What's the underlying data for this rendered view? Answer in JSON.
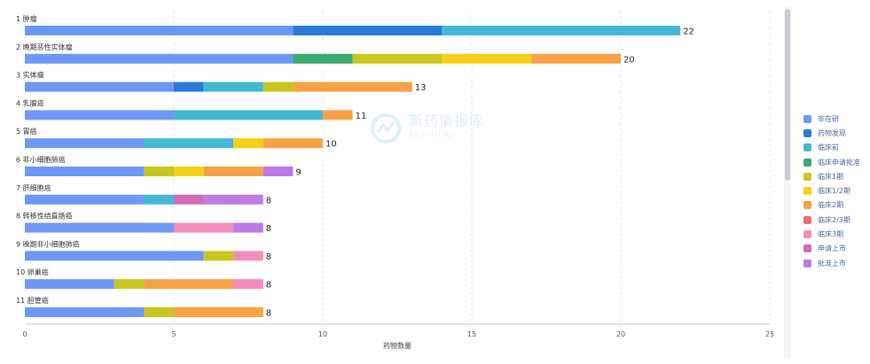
{
  "colors": {
    "非在研": "#6e98f7",
    "药物发现": "#2a7ad9",
    "临床前": "#43b8d2",
    "临床申请批准": "#3aaa72",
    "临床1期": "#c9c61d",
    "临床1/2期": "#f3d217",
    "临床2期": "#f8a245",
    "临床2/3期": "#ef6c78",
    "临床3期": "#f38cbc",
    "申请上市": "#d46bb7",
    "批准上市": "#be7be7"
  },
  "watermark": {
    "title": "新药情报库",
    "subtitle": "by patsnap"
  },
  "chart_data": {
    "type": "bar",
    "orientation": "horizontal",
    "stacked": true,
    "xlabel": "药物数量",
    "xlim": [
      0,
      25
    ],
    "xticks": [
      0,
      5,
      10,
      15,
      20,
      25
    ],
    "grid": true,
    "legend_position": "right",
    "stages": [
      "非在研",
      "药物发现",
      "临床前",
      "临床申请批准",
      "临床1期",
      "临床1/2期",
      "临床2期",
      "临床2/3期",
      "临床3期",
      "申请上市",
      "批准上市"
    ],
    "categories": [
      {
        "rank": "1",
        "name": "肿瘤",
        "total": 22,
        "segments": [
          [
            "非在研",
            9
          ],
          [
            "药物发现",
            5
          ],
          [
            "临床前",
            8
          ]
        ]
      },
      {
        "rank": "2",
        "name": "晚期恶性实体瘤",
        "total": 20,
        "segments": [
          [
            "非在研",
            9
          ],
          [
            "临床申请批准",
            2
          ],
          [
            "临床1期",
            3
          ],
          [
            "临床1/2期",
            3
          ],
          [
            "临床2期",
            3
          ]
        ]
      },
      {
        "rank": "3",
        "name": "实体瘤",
        "total": 13,
        "segments": [
          [
            "非在研",
            5
          ],
          [
            "药物发现",
            1
          ],
          [
            "临床前",
            2
          ],
          [
            "临床1期",
            1
          ],
          [
            "临床2期",
            4
          ]
        ]
      },
      {
        "rank": "4",
        "name": "乳腺癌",
        "total": 11,
        "segments": [
          [
            "非在研",
            5
          ],
          [
            "临床前",
            5
          ],
          [
            "临床2期",
            1
          ]
        ]
      },
      {
        "rank": "5",
        "name": "胃癌",
        "total": 10,
        "segments": [
          [
            "非在研",
            4
          ],
          [
            "临床前",
            3
          ],
          [
            "临床1/2期",
            1
          ],
          [
            "临床2期",
            2
          ]
        ]
      },
      {
        "rank": "6",
        "name": "非小细胞肺癌",
        "total": 9,
        "segments": [
          [
            "非在研",
            4
          ],
          [
            "临床1期",
            1
          ],
          [
            "临床1/2期",
            1
          ],
          [
            "临床2期",
            2
          ],
          [
            "批准上市",
            1
          ]
        ]
      },
      {
        "rank": "7",
        "name": "肝细胞癌",
        "total": 8,
        "segments": [
          [
            "非在研",
            4
          ],
          [
            "临床前",
            1
          ],
          [
            "申请上市",
            1
          ],
          [
            "批准上市",
            2
          ]
        ]
      },
      {
        "rank": "8",
        "name": "转移性结直肠癌",
        "total": 8,
        "segments": [
          [
            "非在研",
            5
          ],
          [
            "临床3期",
            2
          ],
          [
            "批准上市",
            1
          ]
        ]
      },
      {
        "rank": "9",
        "name": "晚期非小细胞肺癌",
        "total": 8,
        "segments": [
          [
            "非在研",
            6
          ],
          [
            "临床1期",
            1
          ],
          [
            "临床3期",
            1
          ]
        ]
      },
      {
        "rank": "10",
        "name": "卵巢癌",
        "total": 8,
        "segments": [
          [
            "非在研",
            3
          ],
          [
            "临床1期",
            1
          ],
          [
            "临床2期",
            3
          ],
          [
            "临床3期",
            1
          ]
        ]
      },
      {
        "rank": "11",
        "name": "胆管癌",
        "total": 8,
        "segments": [
          [
            "非在研",
            4
          ],
          [
            "临床1期",
            1
          ],
          [
            "临床2期",
            3
          ]
        ]
      }
    ]
  }
}
